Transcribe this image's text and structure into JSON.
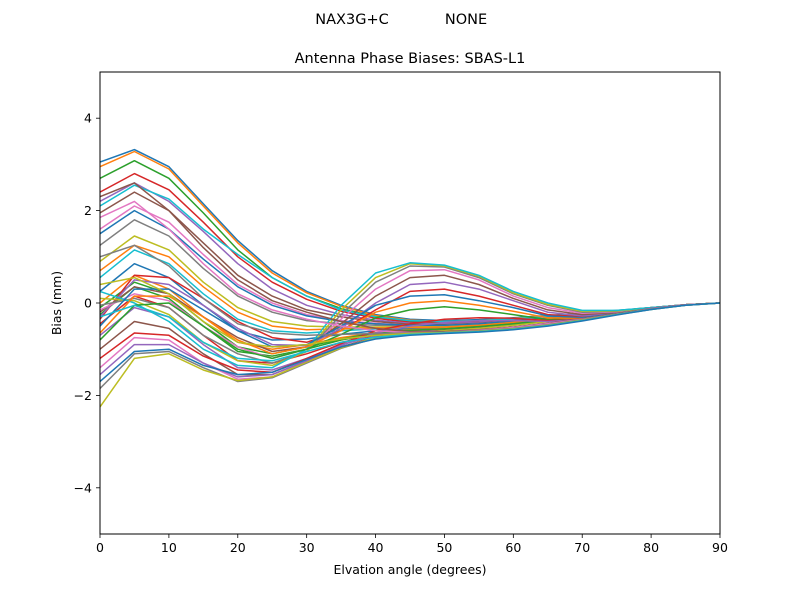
{
  "suptitle": {
    "antenna": "NAX3G+C",
    "radome": "NONE"
  },
  "chart_data": {
    "type": "line",
    "title": "Antenna Phase Biases: SBAS-L1",
    "xlabel": "Elvation angle (degrees)",
    "ylabel": "Bias (mm)",
    "xlim": [
      0,
      90
    ],
    "ylim": [
      -5,
      5
    ],
    "xticks": [
      "0",
      "10",
      "20",
      "30",
      "40",
      "50",
      "60",
      "70",
      "80",
      "90"
    ],
    "yticks": [
      "−4",
      "−2",
      "0",
      "2",
      "4"
    ],
    "grid": false,
    "legend": "none",
    "x": [
      0,
      5,
      10,
      15,
      20,
      25,
      30,
      35,
      40,
      45,
      50,
      55,
      60,
      65,
      70,
      75,
      80,
      85,
      90
    ],
    "series": [
      {
        "values": [
          3.05,
          3.32,
          2.95,
          2.15,
          1.35,
          0.7,
          0.25,
          -0.05,
          -0.25,
          -0.35,
          -0.38,
          -0.36,
          -0.32,
          -0.27,
          -0.22,
          -0.16,
          -0.1,
          -0.04,
          0.0
        ]
      },
      {
        "values": [
          2.95,
          3.28,
          2.9,
          2.1,
          1.3,
          0.65,
          0.22,
          -0.07,
          -0.27,
          -0.37,
          -0.4,
          -0.38,
          -0.33,
          -0.28,
          -0.23,
          -0.17,
          -0.1,
          -0.04,
          0.0
        ]
      },
      {
        "values": [
          2.7,
          3.08,
          2.7,
          1.95,
          1.15,
          0.55,
          0.15,
          -0.12,
          -0.3,
          -0.4,
          -0.42,
          -0.4,
          -0.35,
          -0.29,
          -0.24,
          -0.17,
          -0.1,
          -0.04,
          0.0
        ]
      },
      {
        "values": [
          2.4,
          2.8,
          2.45,
          1.75,
          1.0,
          0.45,
          0.08,
          -0.18,
          -0.33,
          -0.42,
          -0.44,
          -0.41,
          -0.36,
          -0.3,
          -0.24,
          -0.17,
          -0.1,
          -0.04,
          0.0
        ]
      },
      {
        "values": [
          2.2,
          2.6,
          2.2,
          1.55,
          0.85,
          0.3,
          -0.05,
          -0.25,
          -0.37,
          -0.44,
          -0.45,
          -0.42,
          -0.37,
          -0.31,
          -0.25,
          -0.18,
          -0.11,
          -0.04,
          0.0
        ]
      },
      {
        "values": [
          1.95,
          2.4,
          2.0,
          1.3,
          0.6,
          0.15,
          -0.15,
          -0.3,
          -0.4,
          -0.46,
          -0.47,
          -0.44,
          -0.38,
          -0.32,
          -0.25,
          -0.18,
          -0.11,
          -0.04,
          0.0
        ]
      },
      {
        "values": [
          1.6,
          2.1,
          1.75,
          1.05,
          0.4,
          0.0,
          -0.25,
          -0.38,
          -0.44,
          -0.48,
          -0.48,
          -0.45,
          -0.39,
          -0.32,
          -0.26,
          -0.18,
          -0.11,
          -0.04,
          0.0
        ]
      },
      {
        "values": [
          1.25,
          1.8,
          1.45,
          0.75,
          0.15,
          -0.2,
          -0.38,
          -0.45,
          -0.48,
          -0.5,
          -0.5,
          -0.46,
          -0.4,
          -0.33,
          -0.26,
          -0.19,
          -0.11,
          -0.04,
          0.0
        ]
      },
      {
        "values": [
          0.9,
          1.45,
          1.15,
          0.45,
          -0.1,
          -0.4,
          -0.5,
          -0.52,
          -0.52,
          -0.52,
          -0.51,
          -0.47,
          -0.41,
          -0.34,
          -0.27,
          -0.19,
          -0.11,
          -0.04,
          0.0
        ]
      },
      {
        "values": [
          0.55,
          1.15,
          0.85,
          0.2,
          -0.35,
          -0.6,
          -0.65,
          -0.6,
          -0.56,
          -0.54,
          -0.52,
          -0.48,
          -0.42,
          -0.35,
          -0.27,
          -0.19,
          -0.11,
          -0.04,
          0.0
        ]
      },
      {
        "values": [
          0.25,
          0.85,
          0.55,
          -0.05,
          -0.6,
          -0.8,
          -0.78,
          -0.68,
          -0.6,
          -0.56,
          -0.53,
          -0.49,
          -0.43,
          -0.35,
          -0.28,
          -0.2,
          -0.11,
          -0.04,
          0.0
        ]
      },
      {
        "values": [
          0.0,
          0.6,
          0.3,
          -0.3,
          -0.85,
          -1.0,
          -0.9,
          -0.75,
          -0.64,
          -0.58,
          -0.55,
          -0.5,
          -0.44,
          -0.36,
          -0.28,
          -0.2,
          -0.12,
          -0.04,
          0.0
        ]
      },
      {
        "values": [
          -0.25,
          0.35,
          0.1,
          -0.5,
          -1.05,
          -1.15,
          -1.0,
          -0.8,
          -0.67,
          -0.6,
          -0.56,
          -0.51,
          -0.45,
          -0.37,
          -0.29,
          -0.2,
          -0.12,
          -0.04,
          0.0
        ]
      },
      {
        "values": [
          -0.45,
          0.15,
          -0.1,
          -0.7,
          -1.25,
          -1.3,
          -1.1,
          -0.85,
          -0.7,
          -0.62,
          -0.57,
          -0.52,
          -0.46,
          -0.38,
          -0.29,
          -0.2,
          -0.12,
          -0.04,
          0.0
        ]
      },
      {
        "values": [
          -0.7,
          -0.1,
          -0.3,
          -0.9,
          -1.4,
          -1.45,
          -1.2,
          -0.9,
          -0.72,
          -0.63,
          -0.58,
          -0.53,
          -0.47,
          -0.38,
          -0.3,
          -0.21,
          -0.12,
          -0.04,
          0.0
        ]
      },
      {
        "values": [
          -1.0,
          -0.4,
          -0.55,
          -1.1,
          -1.55,
          -1.55,
          -1.25,
          -0.95,
          -0.74,
          -0.64,
          -0.59,
          -0.54,
          -0.47,
          -0.39,
          -0.3,
          -0.21,
          -0.12,
          -0.04,
          0.0
        ]
      },
      {
        "values": [
          -1.4,
          -0.75,
          -0.8,
          -1.3,
          -1.65,
          -1.6,
          -1.28,
          -0.97,
          -0.75,
          -0.65,
          -0.6,
          -0.55,
          -0.48,
          -0.39,
          -0.3,
          -0.21,
          -0.12,
          -0.04,
          0.0
        ]
      },
      {
        "values": [
          -1.85,
          -1.1,
          -1.05,
          -1.4,
          -1.7,
          -1.62,
          -1.3,
          -0.98,
          -0.76,
          -0.66,
          -0.6,
          -0.55,
          -0.48,
          -0.4,
          -0.31,
          -0.21,
          -0.12,
          -0.04,
          0.0
        ]
      },
      {
        "values": [
          -2.25,
          -1.2,
          -1.1,
          -1.45,
          -1.68,
          -1.6,
          -1.28,
          -0.97,
          -0.75,
          -0.65,
          -0.6,
          -0.55,
          -0.48,
          -0.4,
          -0.31,
          -0.21,
          -0.12,
          -0.04,
          0.0
        ]
      },
      {
        "values": [
          2.1,
          2.55,
          2.25,
          1.6,
          1.05,
          0.55,
          0.15,
          -0.15,
          -0.3,
          -0.38,
          -0.4,
          -0.38,
          -0.34,
          -0.29,
          -0.23,
          -0.17,
          -0.1,
          -0.04,
          0.0
        ]
      },
      {
        "values": [
          1.5,
          2.0,
          1.6,
          0.95,
          0.35,
          -0.05,
          -0.28,
          -0.4,
          -0.45,
          -0.48,
          -0.48,
          -0.45,
          -0.39,
          -0.33,
          -0.26,
          -0.18,
          -0.11,
          -0.04,
          0.0
        ]
      },
      {
        "values": [
          0.7,
          1.25,
          1.0,
          0.35,
          -0.2,
          -0.5,
          -0.58,
          -0.56,
          -0.54,
          -0.53,
          -0.52,
          -0.48,
          -0.42,
          -0.34,
          -0.27,
          -0.19,
          -0.11,
          -0.04,
          0.0
        ]
      },
      {
        "values": [
          -0.1,
          0.45,
          0.2,
          -0.4,
          -0.95,
          -1.1,
          -0.95,
          -0.78,
          -0.65,
          -0.59,
          -0.56,
          -0.51,
          -0.45,
          -0.37,
          -0.29,
          -0.2,
          -0.12,
          -0.04,
          0.0
        ]
      },
      {
        "values": [
          -0.35,
          0.6,
          0.55,
          0.1,
          -0.4,
          -0.75,
          -0.85,
          -0.6,
          -0.15,
          0.25,
          0.3,
          0.15,
          -0.05,
          -0.25,
          -0.3,
          -0.22,
          -0.12,
          -0.04,
          0.0
        ]
      },
      {
        "values": [
          -0.3,
          0.5,
          0.4,
          -0.05,
          -0.55,
          -0.9,
          -0.92,
          -0.55,
          0.0,
          0.4,
          0.45,
          0.3,
          0.05,
          -0.2,
          -0.28,
          -0.22,
          -0.12,
          -0.04,
          0.0
        ]
      },
      {
        "values": [
          -0.2,
          0.35,
          0.2,
          -0.3,
          -0.75,
          -1.05,
          -0.95,
          -0.45,
          0.15,
          0.55,
          0.6,
          0.4,
          0.1,
          -0.15,
          -0.25,
          -0.2,
          -0.12,
          -0.04,
          0.0
        ]
      },
      {
        "values": [
          -0.15,
          0.2,
          0.05,
          -0.5,
          -0.95,
          -1.2,
          -1.0,
          -0.35,
          0.3,
          0.7,
          0.72,
          0.5,
          0.15,
          -0.1,
          -0.22,
          -0.19,
          -0.11,
          -0.04,
          0.0
        ]
      },
      {
        "values": [
          -0.05,
          0.1,
          -0.1,
          -0.7,
          -1.1,
          -1.3,
          -1.05,
          -0.25,
          0.45,
          0.8,
          0.78,
          0.55,
          0.2,
          -0.05,
          -0.2,
          -0.18,
          -0.11,
          -0.04,
          0.0
        ]
      },
      {
        "values": [
          0.1,
          0.05,
          -0.25,
          -0.85,
          -1.25,
          -1.35,
          -1.05,
          -0.15,
          0.55,
          0.85,
          0.8,
          0.58,
          0.22,
          -0.03,
          -0.18,
          -0.17,
          -0.11,
          -0.04,
          0.0
        ]
      },
      {
        "values": [
          0.25,
          0.0,
          -0.4,
          -1.0,
          -1.35,
          -1.4,
          -1.0,
          -0.05,
          0.65,
          0.87,
          0.82,
          0.6,
          0.25,
          0.0,
          -0.16,
          -0.16,
          -0.1,
          -0.04,
          0.0
        ]
      },
      {
        "values": [
          -0.5,
          0.3,
          0.3,
          -0.15,
          -0.6,
          -0.95,
          -0.9,
          -0.5,
          -0.05,
          0.15,
          0.18,
          0.05,
          -0.1,
          -0.28,
          -0.32,
          -0.23,
          -0.12,
          -0.04,
          0.0
        ]
      },
      {
        "values": [
          -0.65,
          0.15,
          0.15,
          -0.3,
          -0.8,
          -1.1,
          -0.95,
          -0.6,
          -0.2,
          0.0,
          0.05,
          -0.05,
          -0.18,
          -0.32,
          -0.34,
          -0.24,
          -0.12,
          -0.04,
          0.0
        ]
      },
      {
        "values": [
          -0.8,
          -0.05,
          0.0,
          -0.5,
          -1.0,
          -1.2,
          -1.0,
          -0.68,
          -0.32,
          -0.15,
          -0.08,
          -0.15,
          -0.25,
          -0.36,
          -0.36,
          -0.25,
          -0.13,
          -0.04,
          0.0
        ]
      },
      {
        "values": [
          -1.2,
          -0.65,
          -0.7,
          -1.15,
          -1.45,
          -1.5,
          -1.2,
          -0.88,
          -0.6,
          -0.45,
          -0.35,
          -0.32,
          -0.33,
          -0.38,
          -0.35,
          -0.24,
          -0.12,
          -0.04,
          0.0
        ]
      },
      {
        "values": [
          -1.55,
          -0.9,
          -0.9,
          -1.3,
          -1.6,
          -1.55,
          -1.25,
          -0.92,
          -0.65,
          -0.5,
          -0.42,
          -0.38,
          -0.38,
          -0.4,
          -0.35,
          -0.24,
          -0.12,
          -0.04,
          0.0
        ]
      },
      {
        "values": [
          2.3,
          2.6,
          2.0,
          1.2,
          0.5,
          0.05,
          -0.2,
          -0.4,
          -0.55,
          -0.62,
          -0.62,
          -0.58,
          -0.52,
          -0.44,
          -0.34,
          -0.23,
          -0.13,
          -0.05,
          0.0
        ]
      },
      {
        "values": [
          1.85,
          2.2,
          1.6,
          0.85,
          0.2,
          -0.15,
          -0.35,
          -0.5,
          -0.6,
          -0.64,
          -0.63,
          -0.59,
          -0.53,
          -0.45,
          -0.35,
          -0.24,
          -0.13,
          -0.05,
          0.0
        ]
      },
      {
        "values": [
          1.0,
          1.25,
          0.8,
          0.1,
          -0.45,
          -0.65,
          -0.7,
          -0.68,
          -0.66,
          -0.65,
          -0.63,
          -0.6,
          -0.55,
          -0.47,
          -0.36,
          -0.24,
          -0.13,
          -0.05,
          0.0
        ]
      },
      {
        "values": [
          0.4,
          0.55,
          0.2,
          -0.4,
          -0.85,
          -0.95,
          -0.9,
          -0.78,
          -0.7,
          -0.66,
          -0.64,
          -0.61,
          -0.56,
          -0.48,
          -0.37,
          -0.25,
          -0.14,
          -0.05,
          0.0
        ]
      },
      {
        "values": [
          -0.3,
          -0.05,
          -0.3,
          -0.85,
          -1.2,
          -1.25,
          -1.05,
          -0.85,
          -0.74,
          -0.68,
          -0.65,
          -0.62,
          -0.57,
          -0.49,
          -0.38,
          -0.25,
          -0.14,
          -0.05,
          0.0
        ]
      },
      {
        "values": [
          -1.7,
          -1.05,
          -1.0,
          -1.35,
          -1.55,
          -1.5,
          -1.22,
          -0.95,
          -0.78,
          -0.7,
          -0.66,
          -0.63,
          -0.58,
          -0.5,
          -0.39,
          -0.26,
          -0.14,
          -0.05,
          0.0
        ]
      }
    ]
  }
}
